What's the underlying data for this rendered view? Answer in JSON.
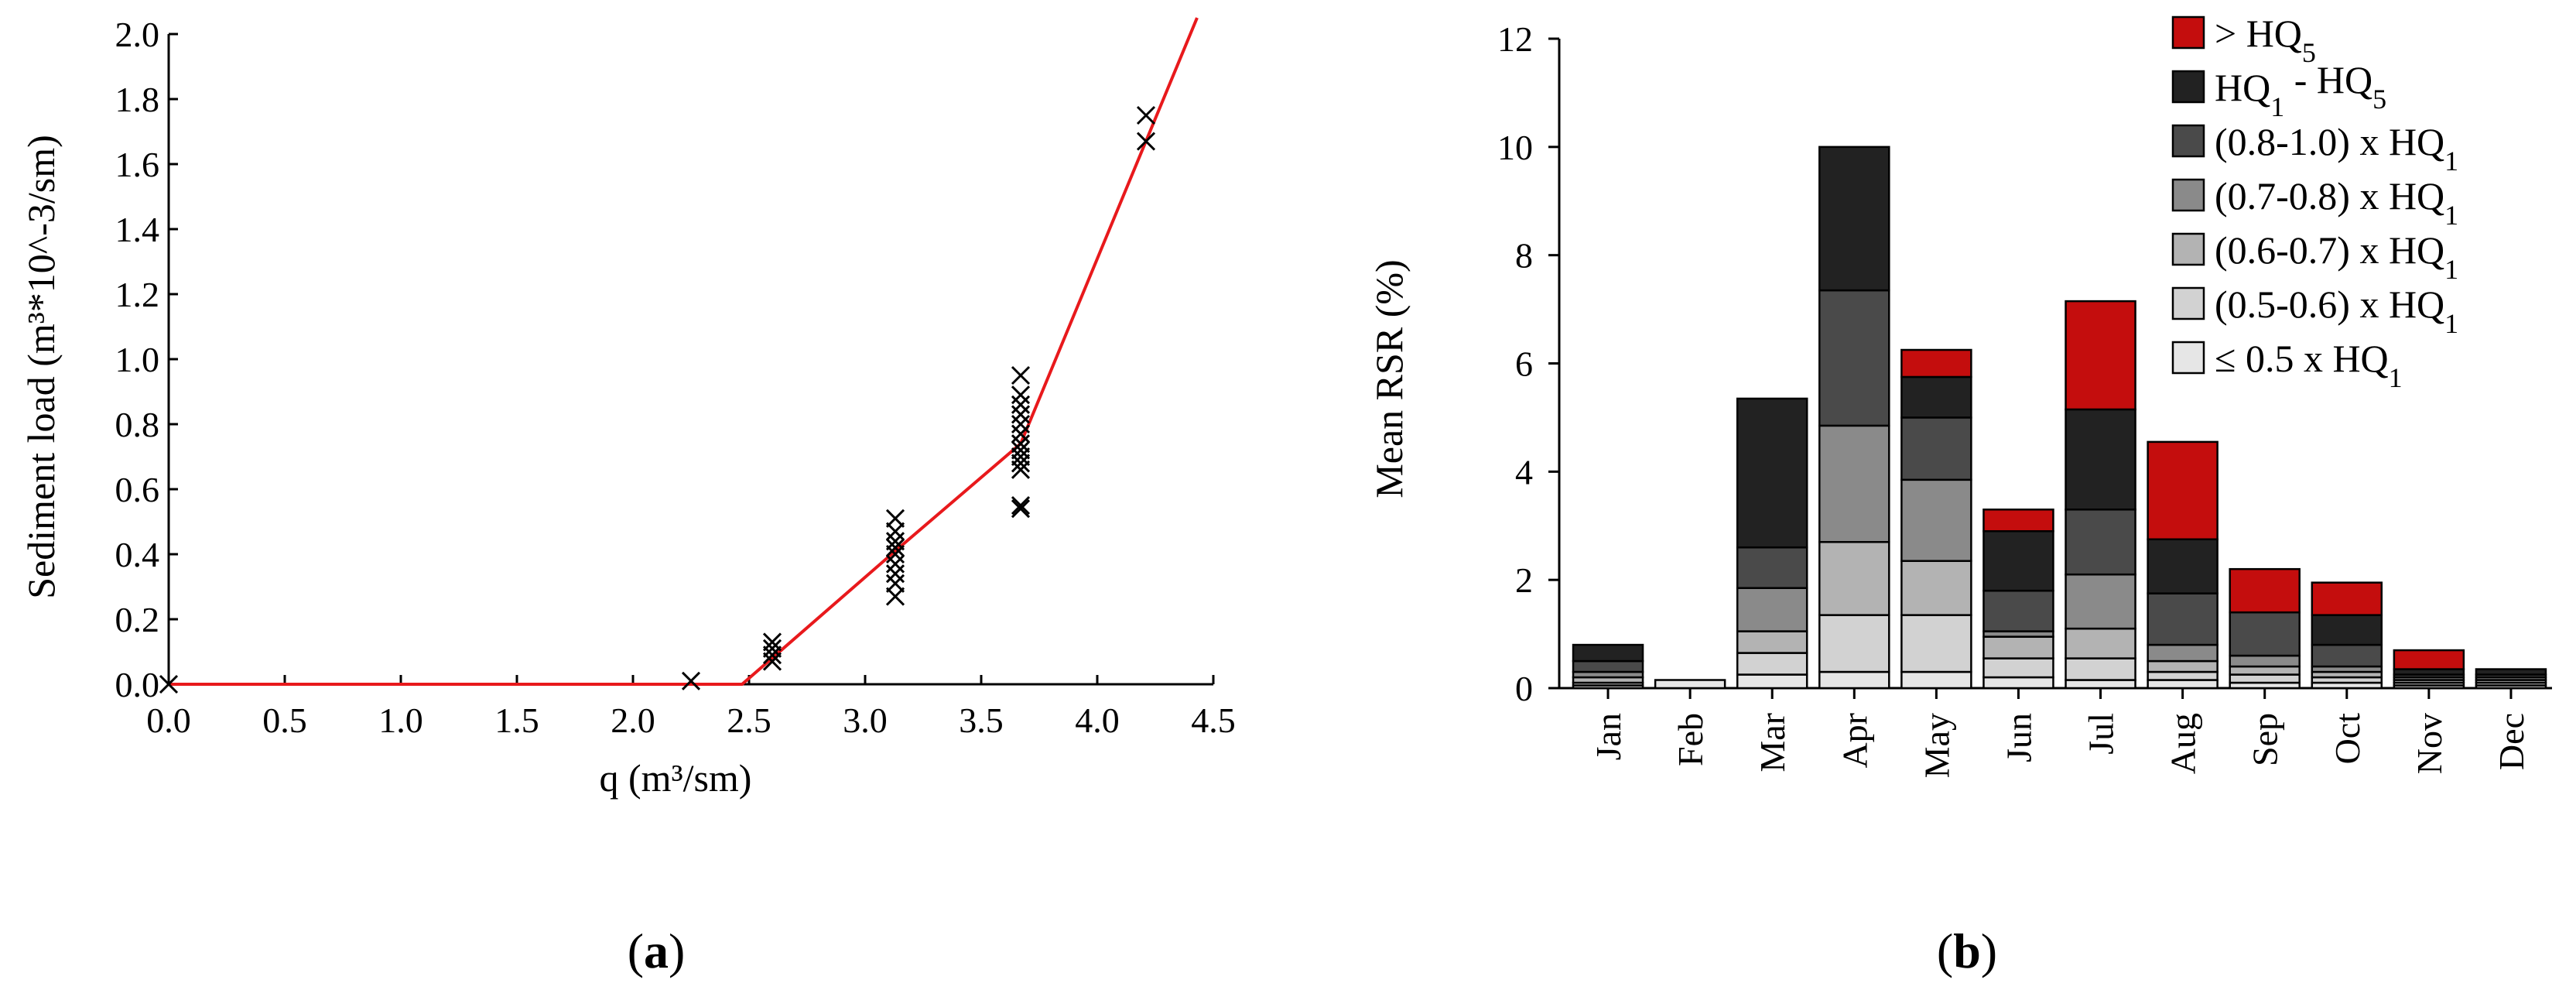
{
  "chart_data": [
    {
      "type": "scatter",
      "panel_label": "a",
      "xlabel": "q (m³/sm)",
      "ylabel": "Sediment load (m³*10^-3/sm)",
      "xlim": [
        0,
        4.5
      ],
      "ylim": [
        0,
        2.0
      ],
      "x_ticks": [
        "0.0",
        "0.5",
        "1.0",
        "1.5",
        "2.0",
        "2.5",
        "3.0",
        "3.5",
        "4.0",
        "4.5"
      ],
      "y_ticks": [
        "0.0",
        "0.2",
        "0.4",
        "0.6",
        "0.8",
        "1.0",
        "1.2",
        "1.4",
        "1.6",
        "1.8",
        "2.0"
      ],
      "points": [
        {
          "x": 0.0,
          "y": 0.0
        },
        {
          "x": 2.25,
          "y": 0.01
        },
        {
          "x": 2.6,
          "y": 0.07
        },
        {
          "x": 2.6,
          "y": 0.09
        },
        {
          "x": 2.6,
          "y": 0.11
        },
        {
          "x": 2.6,
          "y": 0.13
        },
        {
          "x": 3.13,
          "y": 0.27
        },
        {
          "x": 3.13,
          "y": 0.31
        },
        {
          "x": 3.13,
          "y": 0.34
        },
        {
          "x": 3.13,
          "y": 0.37
        },
        {
          "x": 3.13,
          "y": 0.4
        },
        {
          "x": 3.13,
          "y": 0.42
        },
        {
          "x": 3.13,
          "y": 0.44
        },
        {
          "x": 3.13,
          "y": 0.47
        },
        {
          "x": 3.13,
          "y": 0.51
        },
        {
          "x": 3.67,
          "y": 0.54
        },
        {
          "x": 3.67,
          "y": 0.55
        },
        {
          "x": 3.67,
          "y": 0.66
        },
        {
          "x": 3.67,
          "y": 0.68
        },
        {
          "x": 3.67,
          "y": 0.7
        },
        {
          "x": 3.67,
          "y": 0.72
        },
        {
          "x": 3.67,
          "y": 0.74
        },
        {
          "x": 3.67,
          "y": 0.77
        },
        {
          "x": 3.67,
          "y": 0.8
        },
        {
          "x": 3.67,
          "y": 0.83
        },
        {
          "x": 3.67,
          "y": 0.86
        },
        {
          "x": 3.67,
          "y": 0.89
        },
        {
          "x": 3.67,
          "y": 0.95
        },
        {
          "x": 4.21,
          "y": 1.67
        },
        {
          "x": 4.21,
          "y": 1.75
        }
      ],
      "fit_line": {
        "color": "#e8191c",
        "x": [
          0.0,
          2.47,
          3.13,
          3.67,
          4.43
        ],
        "y": [
          0.0,
          0.0,
          0.41,
          0.74,
          2.05
        ]
      }
    },
    {
      "type": "bar",
      "stacked": true,
      "panel_label": "b",
      "ylabel": "Mean RSR (%)",
      "ylim": [
        0,
        12
      ],
      "y_ticks": [
        "0",
        "2",
        "4",
        "6",
        "8",
        "10",
        "12"
      ],
      "categories": [
        "Jan",
        "Feb",
        "Mar",
        "Apr",
        "May",
        "Jun",
        "Jul",
        "Aug",
        "Sep",
        "Oct",
        "Nov",
        "Dec"
      ],
      "series": [
        {
          "name": "≤ 0.5 x HQ",
          "sub": "1",
          "color": "#e6e6e6",
          "values": [
            0.05,
            0.15,
            0.25,
            0.3,
            0.3,
            0.2,
            0.15,
            0.15,
            0.1,
            0.1,
            0.05,
            0.05
          ]
        },
        {
          "name": "(0.5-0.6) x HQ",
          "sub": "1",
          "color": "#d2d2d2",
          "values": [
            0.05,
            0,
            0.4,
            1.05,
            1.05,
            0.35,
            0.4,
            0.15,
            0.15,
            0.1,
            0.05,
            0.05
          ]
        },
        {
          "name": "(0.6-0.7) x HQ",
          "sub": "1",
          "color": "#b3b3b3",
          "values": [
            0.1,
            0,
            0.4,
            1.35,
            1.0,
            0.4,
            0.55,
            0.2,
            0.15,
            0.1,
            0.05,
            0.05
          ]
        },
        {
          "name": "(0.7-0.8) x HQ",
          "sub": "1",
          "color": "#8a8a8a",
          "values": [
            0.1,
            0,
            0.8,
            2.15,
            1.5,
            0.1,
            1.0,
            0.3,
            0.2,
            0.1,
            0.05,
            0.05
          ]
        },
        {
          "name": "(0.8-1.0) x HQ",
          "sub": "1",
          "color": "#4a4a4a",
          "values": [
            0.2,
            0,
            0.75,
            2.5,
            1.15,
            0.75,
            1.2,
            0.95,
            0.8,
            0.4,
            0.05,
            0.05
          ]
        },
        {
          "name": "HQ",
          "sub": "1",
          "suffix": " - HQ",
          "sub2": "5",
          "color": "#222222",
          "values": [
            0.3,
            0,
            2.75,
            2.65,
            0.75,
            1.1,
            1.85,
            1.0,
            0,
            0.55,
            0.1,
            0.1
          ]
        },
        {
          "name": "> HQ",
          "sub": "5",
          "color": "#c40d0d",
          "values": [
            0,
            0,
            0,
            0,
            0.5,
            0.4,
            2.0,
            1.8,
            0.8,
            0.6,
            0.35,
            0
          ]
        }
      ]
    }
  ]
}
